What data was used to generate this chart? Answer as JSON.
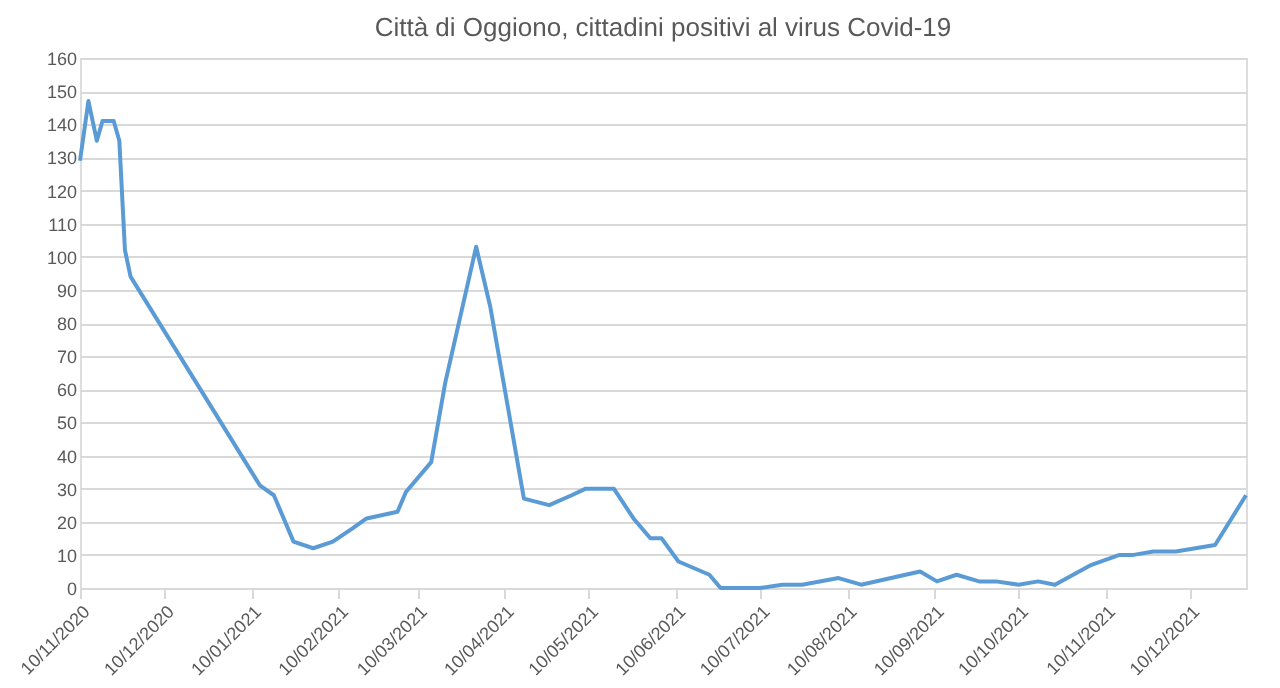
{
  "chart_data": {
    "type": "line",
    "title": "Città di Oggiono, cittadini positivi al virus Covid-19",
    "x": [
      "2020-11-10",
      "2020-11-13",
      "2020-11-16",
      "2020-11-18",
      "2020-11-22",
      "2020-11-24",
      "2020-11-26",
      "2020-11-28",
      "2021-01-13",
      "2021-01-18",
      "2021-01-25",
      "2021-02-01",
      "2021-02-08",
      "2021-02-15",
      "2021-02-20",
      "2021-03-03",
      "2021-03-06",
      "2021-03-15",
      "2021-03-20",
      "2021-03-31",
      "2021-04-05",
      "2021-04-17",
      "2021-04-26",
      "2021-05-04",
      "2021-05-09",
      "2021-05-19",
      "2021-05-26",
      "2021-06-01",
      "2021-06-05",
      "2021-06-11",
      "2021-06-22",
      "2021-06-26",
      "2021-07-10",
      "2021-07-18",
      "2021-07-25",
      "2021-08-07",
      "2021-08-15",
      "2021-09-05",
      "2021-09-11",
      "2021-09-18",
      "2021-09-26",
      "2021-10-02",
      "2021-10-10",
      "2021-10-17",
      "2021-10-23",
      "2021-11-05",
      "2021-11-15",
      "2021-11-20",
      "2021-11-27",
      "2021-12-05",
      "2021-12-19",
      "2021-12-30"
    ],
    "series": [
      {
        "color": "#5b9bd5",
        "values": [
          129,
          147,
          135,
          141,
          141,
          135,
          102,
          94,
          31,
          28,
          14,
          12,
          14,
          18,
          21,
          23,
          29,
          38,
          62,
          103,
          85,
          27,
          25,
          28,
          30,
          30,
          21,
          15,
          15,
          8,
          4,
          0,
          0,
          1,
          1,
          3,
          1,
          5,
          2,
          4,
          2,
          2,
          1,
          2,
          1,
          7,
          10,
          10,
          11,
          11,
          13,
          28
        ]
      }
    ],
    "xlim": [
      "2020-11-10",
      "2021-12-30"
    ],
    "xticks": [
      {
        "value": "2020-11-10",
        "label": "10/11/2020"
      },
      {
        "value": "2020-12-10",
        "label": "10/12/2020"
      },
      {
        "value": "2021-01-10",
        "label": "10/01/2021"
      },
      {
        "value": "2021-02-10",
        "label": "10/02/2021"
      },
      {
        "value": "2021-03-10",
        "label": "10/03/2021"
      },
      {
        "value": "2021-04-10",
        "label": "10/04/2021"
      },
      {
        "value": "2021-05-10",
        "label": "10/05/2021"
      },
      {
        "value": "2021-06-10",
        "label": "10/06/2021"
      },
      {
        "value": "2021-07-10",
        "label": "10/07/2021"
      },
      {
        "value": "2021-08-10",
        "label": "10/08/2021"
      },
      {
        "value": "2021-09-10",
        "label": "10/09/2021"
      },
      {
        "value": "2021-10-10",
        "label": "10/10/2021"
      },
      {
        "value": "2021-11-10",
        "label": "10/11/2021"
      },
      {
        "value": "2021-12-10",
        "label": "10/12/2021"
      }
    ],
    "ylim": [
      0,
      160
    ],
    "yticks": [
      0,
      10,
      20,
      30,
      40,
      50,
      60,
      70,
      80,
      90,
      100,
      110,
      120,
      130,
      140,
      150,
      160
    ],
    "grid": "y",
    "marker": "none",
    "line_style": "solid"
  }
}
